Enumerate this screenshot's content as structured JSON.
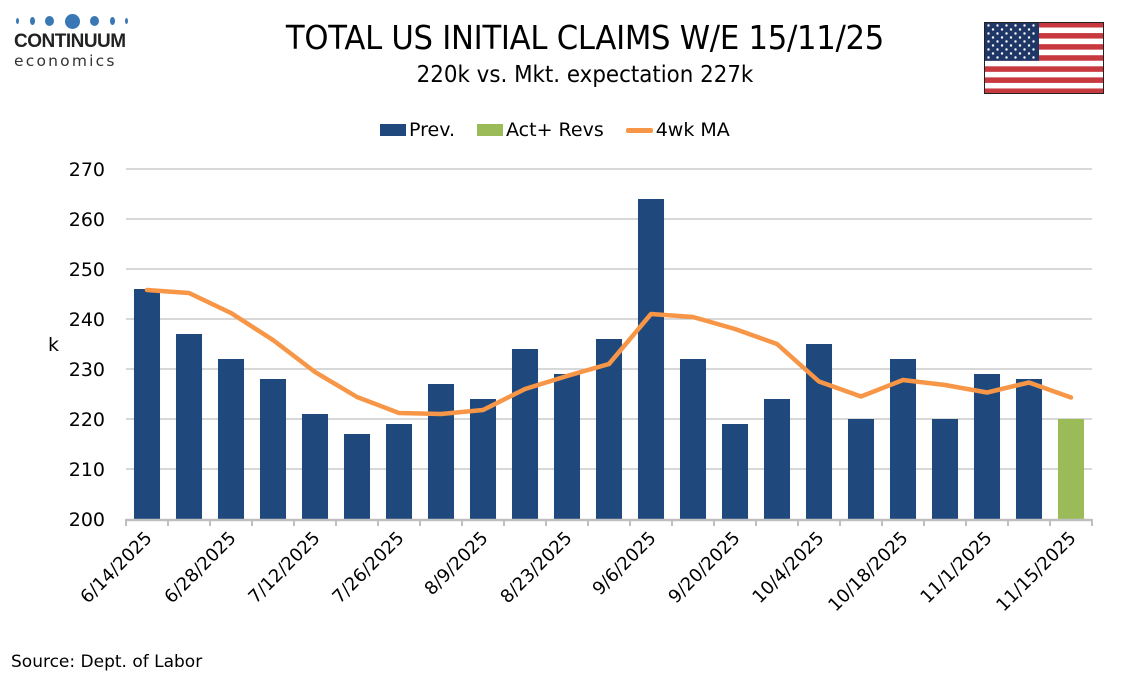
{
  "logo": {
    "name": "CONTINUUM",
    "sub": "economics",
    "dot_color": "#3a78b5"
  },
  "header": {
    "title": "TOTAL US INITIAL CLAIMS W/E 15/11/25",
    "subtitle": "220k vs. Mkt. expectation 227k"
  },
  "flag": {
    "icon": "us-flag-icon",
    "colors": {
      "red": "#c8393f",
      "white": "#ffffff",
      "blue": "#1f3767"
    }
  },
  "source": "Source: Dept. of Labor",
  "chart_data": {
    "type": "bar",
    "title": "TOTAL US INITIAL CLAIMS W/E 15/11/25",
    "subtitle": "220k vs. Mkt. expectation 227k",
    "xlabel": "",
    "ylabel": "k",
    "ylim": [
      200,
      270
    ],
    "yticks": [
      200,
      210,
      220,
      230,
      240,
      250,
      260,
      270
    ],
    "grid": true,
    "legend_position": "top-center",
    "categories": [
      "6/14/2025",
      "6/21/2025",
      "6/28/2025",
      "7/5/2025",
      "7/12/2025",
      "7/19/2025",
      "7/26/2025",
      "8/2/2025",
      "8/9/2025",
      "8/16/2025",
      "8/23/2025",
      "8/30/2025",
      "9/6/2025",
      "9/13/2025",
      "9/20/2025",
      "9/27/2025",
      "10/4/2025",
      "10/11/2025",
      "10/18/2025",
      "10/25/2025",
      "11/1/2025",
      "11/8/2025",
      "11/15/2025"
    ],
    "visible_tick_labels": [
      "6/14/2025",
      "6/28/2025",
      "7/12/2025",
      "7/26/2025",
      "8/9/2025",
      "8/23/2025",
      "9/6/2025",
      "9/20/2025",
      "10/4/2025",
      "10/18/2025",
      "11/1/2025",
      "11/15/2025"
    ],
    "series": [
      {
        "name": "Prev.",
        "kind": "bar",
        "color": "#1f497d",
        "values": [
          246,
          237,
          232,
          228,
          221,
          217,
          219,
          227,
          224,
          234,
          229,
          236,
          264,
          232,
          219,
          224,
          235,
          220,
          232,
          220,
          229,
          228,
          null
        ]
      },
      {
        "name": "Act+ Revs",
        "kind": "bar",
        "color": "#9bbb59",
        "values": [
          null,
          null,
          null,
          null,
          null,
          null,
          null,
          null,
          null,
          null,
          null,
          null,
          null,
          null,
          null,
          null,
          null,
          null,
          null,
          null,
          null,
          null,
          220
        ]
      },
      {
        "name": "4wk MA",
        "kind": "line",
        "color": "#f79646",
        "values": [
          245.8,
          245.2,
          241.2,
          235.8,
          229.4,
          224.4,
          221.2,
          221.0,
          221.8,
          226.0,
          228.6,
          231.0,
          241.0,
          240.4,
          238.0,
          235.0,
          227.5,
          224.5,
          227.8,
          226.8,
          225.3,
          227.3,
          224.3
        ]
      }
    ]
  }
}
